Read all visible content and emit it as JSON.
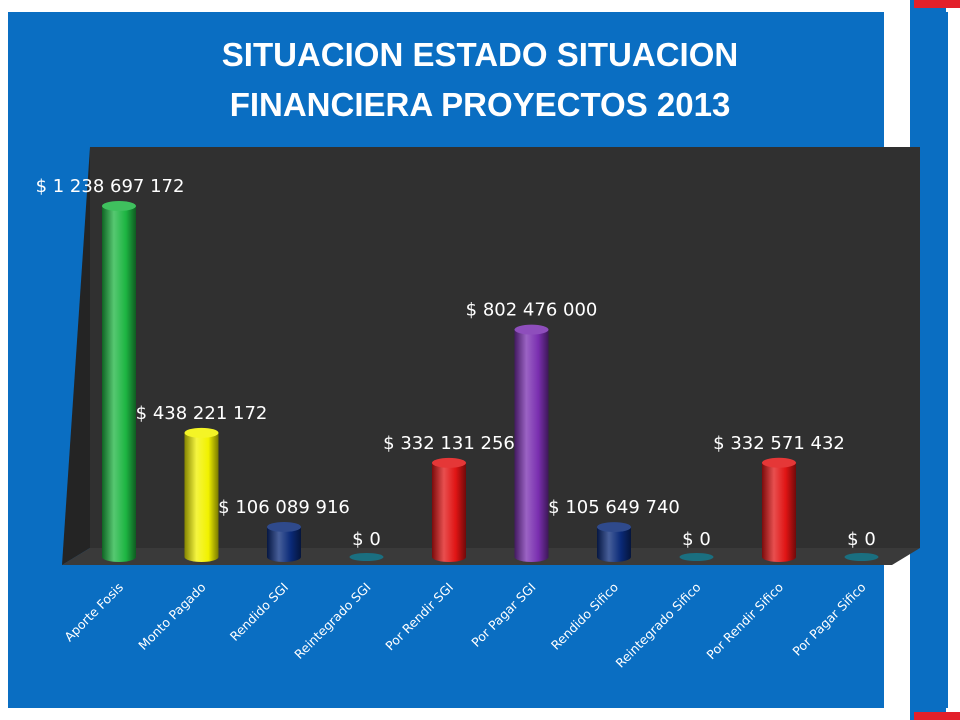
{
  "page": {
    "title_line1": "SITUACION ESTADO SITUACION",
    "title_line2": "FINANCIERA PROYECTOS 2013"
  },
  "chart_data": {
    "type": "bar",
    "style": "3d-cylinder",
    "title": "SITUACION ESTADO SITUACION FINANCIERA PROYECTOS 2013",
    "categories": [
      "Aporte Fosis",
      "Monto Pagado",
      "Rendido SGI",
      "Reintegrado SGI",
      "Por Rendir SGI",
      "Por Pagar SGI",
      "Rendido Sifico",
      "Reintegrado Sifico",
      "Por Rendir Sifico",
      "Por Pagar Sifico"
    ],
    "values": [
      1238697172,
      438221172,
      106089916,
      0,
      332131256,
      802476000,
      105649740,
      0,
      332571432,
      0
    ],
    "data_labels": [
      "$ 1 238 697 172",
      "$ 438 221 172",
      "$ 106 089 916",
      "$ 0",
      "$ 332 131 256",
      "$ 802 476 000",
      "$ 105 649 740",
      "$ 0",
      "$ 332 571 432",
      "$ 0"
    ],
    "colors": [
      "#1db542",
      "#f2f200",
      "#0a2a78",
      "#1a6f80",
      "#e01414",
      "#7a2fb0",
      "#0a2a78",
      "#1a6f80",
      "#e01414",
      "#1a6f80"
    ],
    "ylim": [
      0,
      1300000000
    ],
    "legend": "none",
    "grid": false,
    "wall_color": "#303030",
    "floor_color": "#3a3a3a"
  }
}
